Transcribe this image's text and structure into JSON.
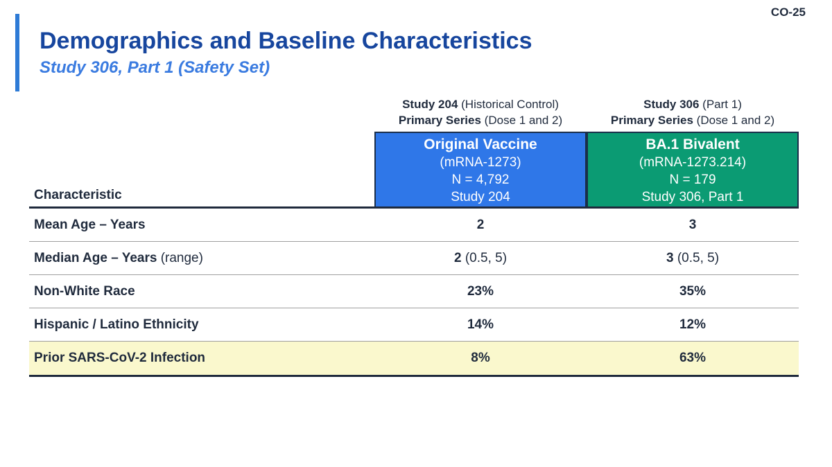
{
  "slide_code": "CO-25",
  "title": "Demographics and Baseline Characteristics",
  "subtitle": "Study 306, Part 1 (Safety Set)",
  "colors": {
    "title_navy": "#17469E",
    "subtitle_blue": "#3A7BE0",
    "accent_bar_blue": "#2E7BD6",
    "blue_box": "#2F77E8",
    "green_box": "#0B9B73",
    "box_border_navy": "#1A2E4A",
    "highlight_yellow": "#FAF8CD",
    "table_text_dark": "#1F2A3C",
    "thick_line_dark": "#1F2A3C",
    "thin_line_gray": "#9E9E9E"
  },
  "table": {
    "row_header_label": "Characteristic",
    "columns": [
      {
        "head_line1_strong": "Study 204",
        "head_line1_normal": " (Historical Control)",
        "head_line2_strong": "Primary Series",
        "head_line2_normal": " (Dose 1 and 2)",
        "box": {
          "title": "Original Vaccine",
          "lines": [
            "(mRNA-1273)",
            "N = 4,792",
            "Study 204"
          ],
          "color_key": "blue_box",
          "name": "treatment-box-original-vaccine"
        }
      },
      {
        "head_line1_strong": "Study 306",
        "head_line1_normal": " (Part 1)",
        "head_line2_strong": "Primary Series",
        "head_line2_normal": " (Dose 1 and 2)",
        "box": {
          "title": "BA.1 Bivalent",
          "lines": [
            "(mRNA-1273.214)",
            "N = 179",
            "Study 306, Part 1"
          ],
          "color_key": "green_box",
          "name": "treatment-box-ba1-bivalent"
        }
      }
    ],
    "rows": [
      {
        "label_strong": "Mean Age – Years",
        "label_normal": "",
        "highlight": false,
        "values": [
          {
            "strong": "2",
            "normal": ""
          },
          {
            "strong": "3",
            "normal": ""
          }
        ]
      },
      {
        "label_strong": "Median Age – Years",
        "label_normal": " (range)",
        "highlight": false,
        "values": [
          {
            "strong": "2",
            "normal": " (0.5, 5)"
          },
          {
            "strong": "3",
            "normal": " (0.5, 5)"
          }
        ]
      },
      {
        "label_strong": "Non-White Race",
        "label_normal": "",
        "highlight": false,
        "values": [
          {
            "strong": "23%",
            "normal": ""
          },
          {
            "strong": "35%",
            "normal": ""
          }
        ]
      },
      {
        "label_strong": "Hispanic / Latino Ethnicity",
        "label_normal": "",
        "highlight": false,
        "values": [
          {
            "strong": "14%",
            "normal": ""
          },
          {
            "strong": "12%",
            "normal": ""
          }
        ]
      },
      {
        "label_strong": "Prior SARS-CoV-2 Infection",
        "label_normal": "",
        "highlight": true,
        "values": [
          {
            "strong": "8%",
            "normal": ""
          },
          {
            "strong": "63%",
            "normal": ""
          }
        ]
      }
    ]
  }
}
